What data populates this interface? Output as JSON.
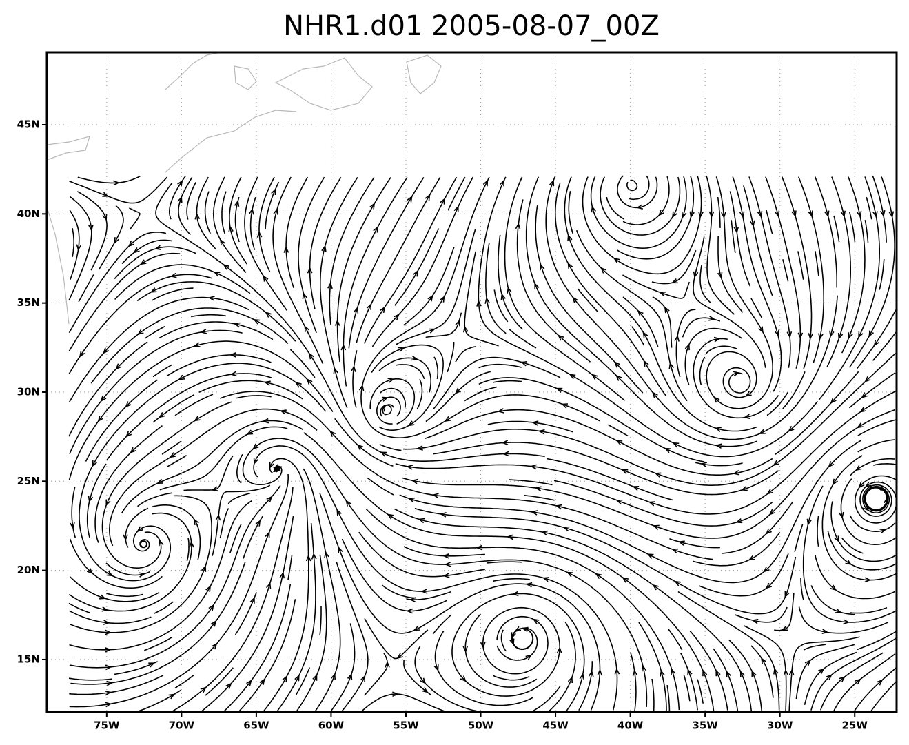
{
  "map": {
    "title": "NHR1.d01 2005-08-07_00Z",
    "xlim": [
      -79,
      -22.2
    ],
    "ylim": [
      12.06,
      49.06
    ],
    "xticks": [
      {
        "value": -75,
        "label": "75W"
      },
      {
        "value": -70,
        "label": "70W"
      },
      {
        "value": -65,
        "label": "65W"
      },
      {
        "value": -60,
        "label": "60W"
      },
      {
        "value": -55,
        "label": "55W"
      },
      {
        "value": -50,
        "label": "50W"
      },
      {
        "value": -45,
        "label": "45W"
      },
      {
        "value": -40,
        "label": "40W"
      },
      {
        "value": -35,
        "label": "35W"
      },
      {
        "value": -30,
        "label": "30W"
      },
      {
        "value": -25,
        "label": "25W"
      }
    ],
    "yticks": [
      {
        "value": 15,
        "label": "15N"
      },
      {
        "value": 20,
        "label": "20N"
      },
      {
        "value": 25,
        "label": "25N"
      },
      {
        "value": 30,
        "label": "30N"
      },
      {
        "value": 35,
        "label": "35N"
      },
      {
        "value": 40,
        "label": "40N"
      },
      {
        "value": 45,
        "label": "45N"
      }
    ],
    "grid": true
  }
}
